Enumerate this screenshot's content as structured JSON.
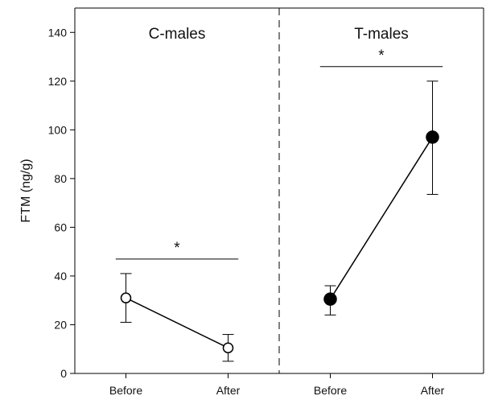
{
  "chart_data": {
    "type": "line",
    "ylabel": "FTM (ng/g)",
    "ylim": [
      0,
      150
    ],
    "yticks": [
      0,
      20,
      40,
      60,
      80,
      100,
      120,
      140
    ],
    "grid": false,
    "panels": [
      {
        "title": "C-males",
        "categories": [
          "Before",
          "After"
        ],
        "values": [
          31,
          10.5
        ],
        "error_high": [
          41,
          16
        ],
        "error_low": [
          21,
          5
        ],
        "marker": "open-circle",
        "significance": "*"
      },
      {
        "title": "T-males",
        "categories": [
          "Before",
          "After"
        ],
        "values": [
          30.5,
          97
        ],
        "error_high": [
          36,
          120
        ],
        "error_low": [
          24,
          73.5
        ],
        "marker": "filled-circle",
        "significance": "*"
      }
    ],
    "divider": "dashed"
  }
}
